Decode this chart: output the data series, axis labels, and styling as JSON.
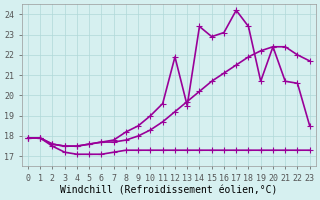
{
  "xlabel": "Windchill (Refroidissement éolien,°C)",
  "ylabel": "",
  "background_color": "#d6f0f0",
  "grid_color": "#b0d8d8",
  "line_color": "#990099",
  "x_ticks": [
    0,
    1,
    2,
    3,
    4,
    5,
    6,
    7,
    8,
    9,
    10,
    11,
    12,
    13,
    14,
    15,
    16,
    17,
    18,
    19,
    20,
    21,
    22,
    23
  ],
  "ylim": [
    16.5,
    24.5
  ],
  "xlim": [
    -0.5,
    23.5
  ],
  "line1_x": [
    0,
    1,
    2,
    3,
    4,
    5,
    6,
    7,
    8,
    9,
    10,
    11,
    12,
    13,
    14,
    15,
    16,
    17,
    18,
    19,
    20,
    21,
    22,
    23
  ],
  "line1_y": [
    17.9,
    17.9,
    17.5,
    17.2,
    17.1,
    17.1,
    17.1,
    17.2,
    17.3,
    17.3,
    17.3,
    17.3,
    17.3,
    17.3,
    17.3,
    17.3,
    17.3,
    17.3,
    17.3,
    17.3,
    17.3,
    17.3,
    17.3,
    17.3
  ],
  "line2_x": [
    0,
    1,
    2,
    3,
    4,
    5,
    6,
    7,
    8,
    9,
    10,
    11,
    12,
    13,
    14,
    15,
    16,
    17,
    18,
    19,
    20,
    21,
    22,
    23
  ],
  "line2_y": [
    17.9,
    17.9,
    17.6,
    17.5,
    17.5,
    17.6,
    17.7,
    17.7,
    17.8,
    18.0,
    18.3,
    18.7,
    19.2,
    19.7,
    20.2,
    20.7,
    21.1,
    21.5,
    21.9,
    22.2,
    22.4,
    22.4,
    22.0,
    21.7
  ],
  "line3_x": [
    0,
    1,
    2,
    3,
    4,
    5,
    6,
    7,
    8,
    9,
    10,
    11,
    12,
    13,
    14,
    15,
    16,
    17,
    18,
    19,
    20,
    21,
    22,
    23
  ],
  "line3_y": [
    17.9,
    17.9,
    17.6,
    17.5,
    17.5,
    17.6,
    17.7,
    17.8,
    18.2,
    18.5,
    19.0,
    19.6,
    21.9,
    19.5,
    23.4,
    22.9,
    23.1,
    24.2,
    23.4,
    20.7,
    22.4,
    20.7,
    20.6,
    18.5
  ],
  "marker": "+",
  "markersize": 5,
  "linewidth": 1.2,
  "tick_fontsize": 6,
  "xlabel_fontsize": 7,
  "yticks": [
    17,
    18,
    19,
    20,
    21,
    22,
    23,
    24
  ],
  "ytick_labels": [
    "17",
    "18",
    "19",
    "20",
    "21",
    "22",
    "23",
    "24"
  ]
}
